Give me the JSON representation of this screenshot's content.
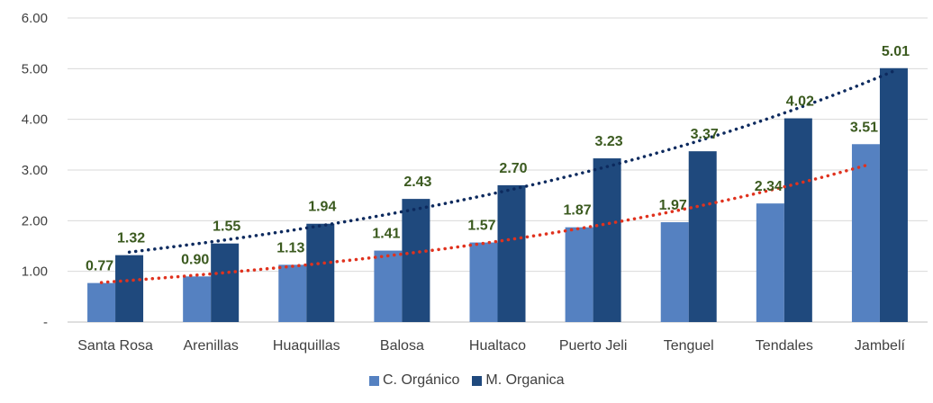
{
  "chart_data": {
    "type": "bar",
    "categories": [
      "Santa Rosa",
      "Arenillas",
      "Huaquillas",
      "Balosa",
      "Hualtaco",
      "Puerto Jeli",
      "Tenguel",
      "Tendales",
      "Jambelí"
    ],
    "series": [
      {
        "name": "C. Orgánico",
        "values": [
          0.77,
          0.9,
          1.13,
          1.41,
          1.57,
          1.87,
          1.97,
          2.34,
          3.51
        ],
        "labels": [
          "0.77",
          "0.90",
          "1.13",
          "1.41",
          "1.57",
          "1.87",
          "1.97",
          "2.34",
          "3.51"
        ],
        "color": "#5581c1"
      },
      {
        "name": "M. Organica",
        "values": [
          1.32,
          1.55,
          1.94,
          2.43,
          2.7,
          3.23,
          3.37,
          4.02,
          5.01
        ],
        "labels": [
          "1.32",
          "1.55",
          "1.94",
          "2.43",
          "2.70",
          "3.23",
          "3.37",
          "4.02",
          "5.01"
        ],
        "color": "#1f497d"
      }
    ],
    "trendlines": [
      {
        "series": "C. Orgánico",
        "style": "dotted",
        "type": "exponential",
        "color": "#e0321e"
      },
      {
        "series": "M. Organica",
        "style": "dotted",
        "type": "exponential",
        "color": "#0d2a5e"
      }
    ],
    "yticks": [
      "-",
      "1.00",
      "2.00",
      "3.00",
      "4.00",
      "5.00",
      "6.00"
    ],
    "ylim": [
      0,
      6
    ],
    "title": "",
    "xlabel": "",
    "ylabel": "",
    "grid": true,
    "legend_position": "bottom"
  }
}
